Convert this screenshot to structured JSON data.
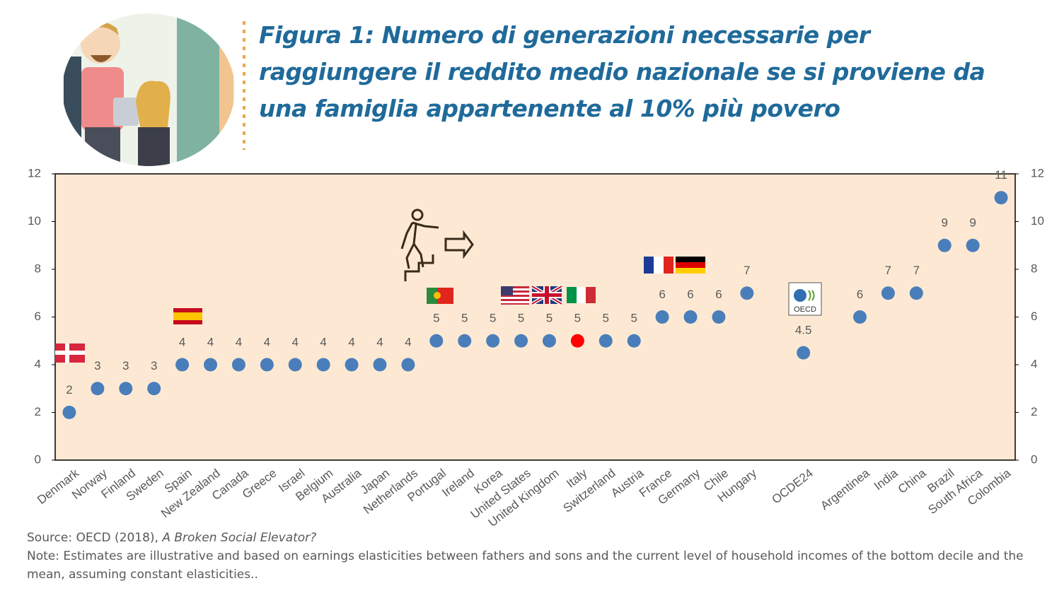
{
  "chart_data": {
    "type": "dot",
    "title": "Figura 1: Numero di generazioni necessarie per raggiungere il reddito medio nazionale se si proviene da una famiglia appartenente al 10% più povero",
    "categories": [
      "Denmark",
      "Norway",
      "Finland",
      "Sweden",
      "Spain",
      "New Zealand",
      "Canada",
      "Greece",
      "Israel",
      "Belgium",
      "Australia",
      "Japan",
      "Netherlands",
      "Portugal",
      "Ireland",
      "Korea",
      "United States",
      "United Kingdom",
      "Italy",
      "Switzerland",
      "Austria",
      "France",
      "Germany",
      "Chile",
      "Hungary",
      null,
      "OCDE24",
      null,
      "Argentinea",
      "India",
      "China",
      "Brazil",
      "South Africa",
      "Colombia"
    ],
    "values": [
      2,
      3,
      3,
      3,
      4,
      4,
      4,
      4,
      4,
      4,
      4,
      4,
      4,
      5,
      5,
      5,
      5,
      5,
      5,
      5,
      5,
      6,
      6,
      6,
      7,
      null,
      4.5,
      null,
      6,
      7,
      7,
      9,
      9,
      11
    ],
    "colors": [
      "#4a7ebb",
      "#4a7ebb",
      "#4a7ebb",
      "#4a7ebb",
      "#4a7ebb",
      "#4a7ebb",
      "#4a7ebb",
      "#4a7ebb",
      "#4a7ebb",
      "#4a7ebb",
      "#4a7ebb",
      "#4a7ebb",
      "#4a7ebb",
      "#4a7ebb",
      "#4a7ebb",
      "#4a7ebb",
      "#4a7ebb",
      "#4a7ebb",
      "#ff0000",
      "#4a7ebb",
      "#4a7ebb",
      "#4a7ebb",
      "#4a7ebb",
      "#4a7ebb",
      "#4a7ebb",
      null,
      "#4a7ebb",
      null,
      "#4a7ebb",
      "#4a7ebb",
      "#4a7ebb",
      "#4a7ebb",
      "#4a7ebb",
      "#4a7ebb"
    ],
    "ylim": [
      0,
      12
    ],
    "yticks": [
      0,
      2,
      4,
      6,
      8,
      10,
      12
    ],
    "y2lim": [
      0,
      12
    ],
    "y2ticks": [
      0,
      2,
      4,
      6,
      8,
      10,
      12
    ],
    "grid": false,
    "source": {
      "text": "Source: OECD (2018),",
      "title": "A Broken Social Elevator?"
    },
    "note": "Note: Estimates are illustrative and based  on earnings elasticities between fathers and sons and the current level of household incomes of the bottom decile and the mean, assuming constant elasticities.."
  }
}
